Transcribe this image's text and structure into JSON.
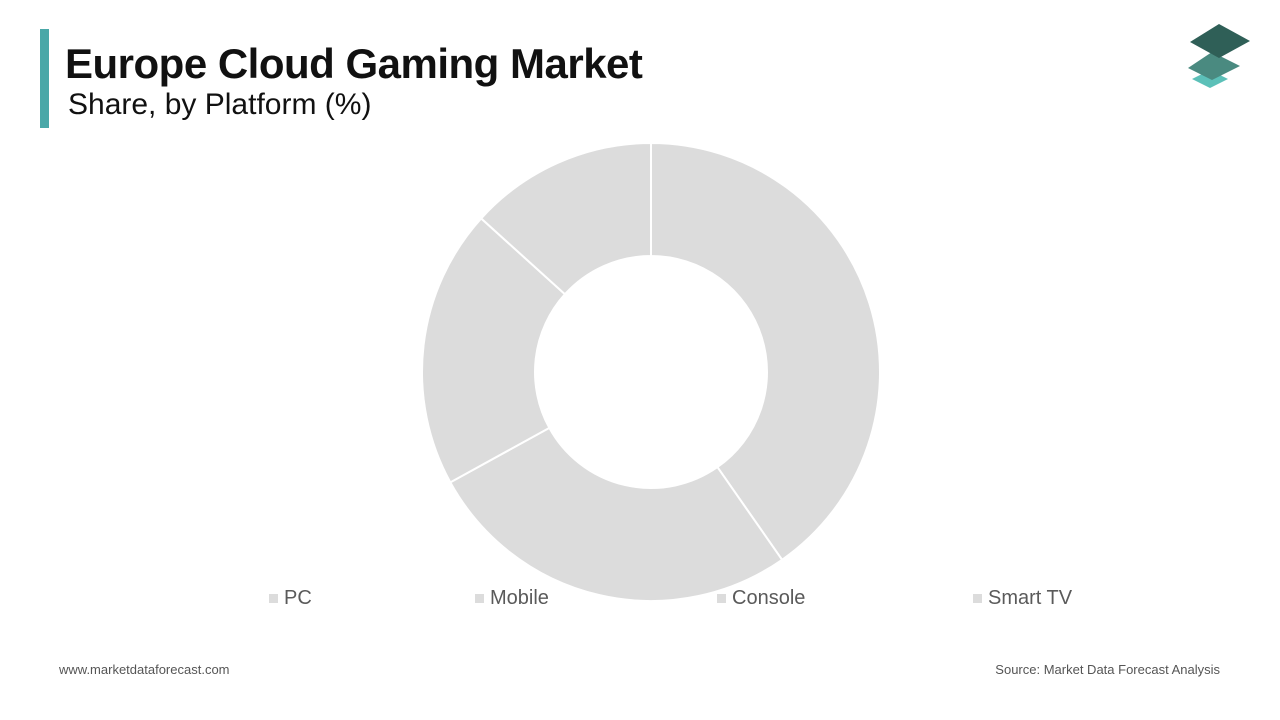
{
  "header": {
    "title": "Europe Cloud Gaming Market",
    "subtitle": "Share, by Platform (%)",
    "accent_color": "#4aa8a8"
  },
  "logo": {
    "icon": "stacked-layers-logo-icon",
    "colors": [
      "#2f5f57",
      "#4a8a80",
      "#5cc0b8"
    ]
  },
  "chart_data": {
    "type": "pie",
    "variant": "donut",
    "title": "Europe Cloud Gaming Market",
    "subtitle": "Share, by Platform (%)",
    "categories": [
      "PC",
      "Mobile",
      "Console",
      "Smart TV"
    ],
    "values": [
      40.3,
      26.7,
      19.7,
      13.3
    ],
    "colors": [
      "#dcdcdc",
      "#dcdcdc",
      "#dcdcdc",
      "#dcdcdc"
    ],
    "separator_color": "#ffffff",
    "legend_position": "bottom",
    "start": "top",
    "direction": "clockwise"
  },
  "footer": {
    "website": "www.marketdataforecast.com",
    "source": "Source: Market Data Forecast Analysis"
  }
}
